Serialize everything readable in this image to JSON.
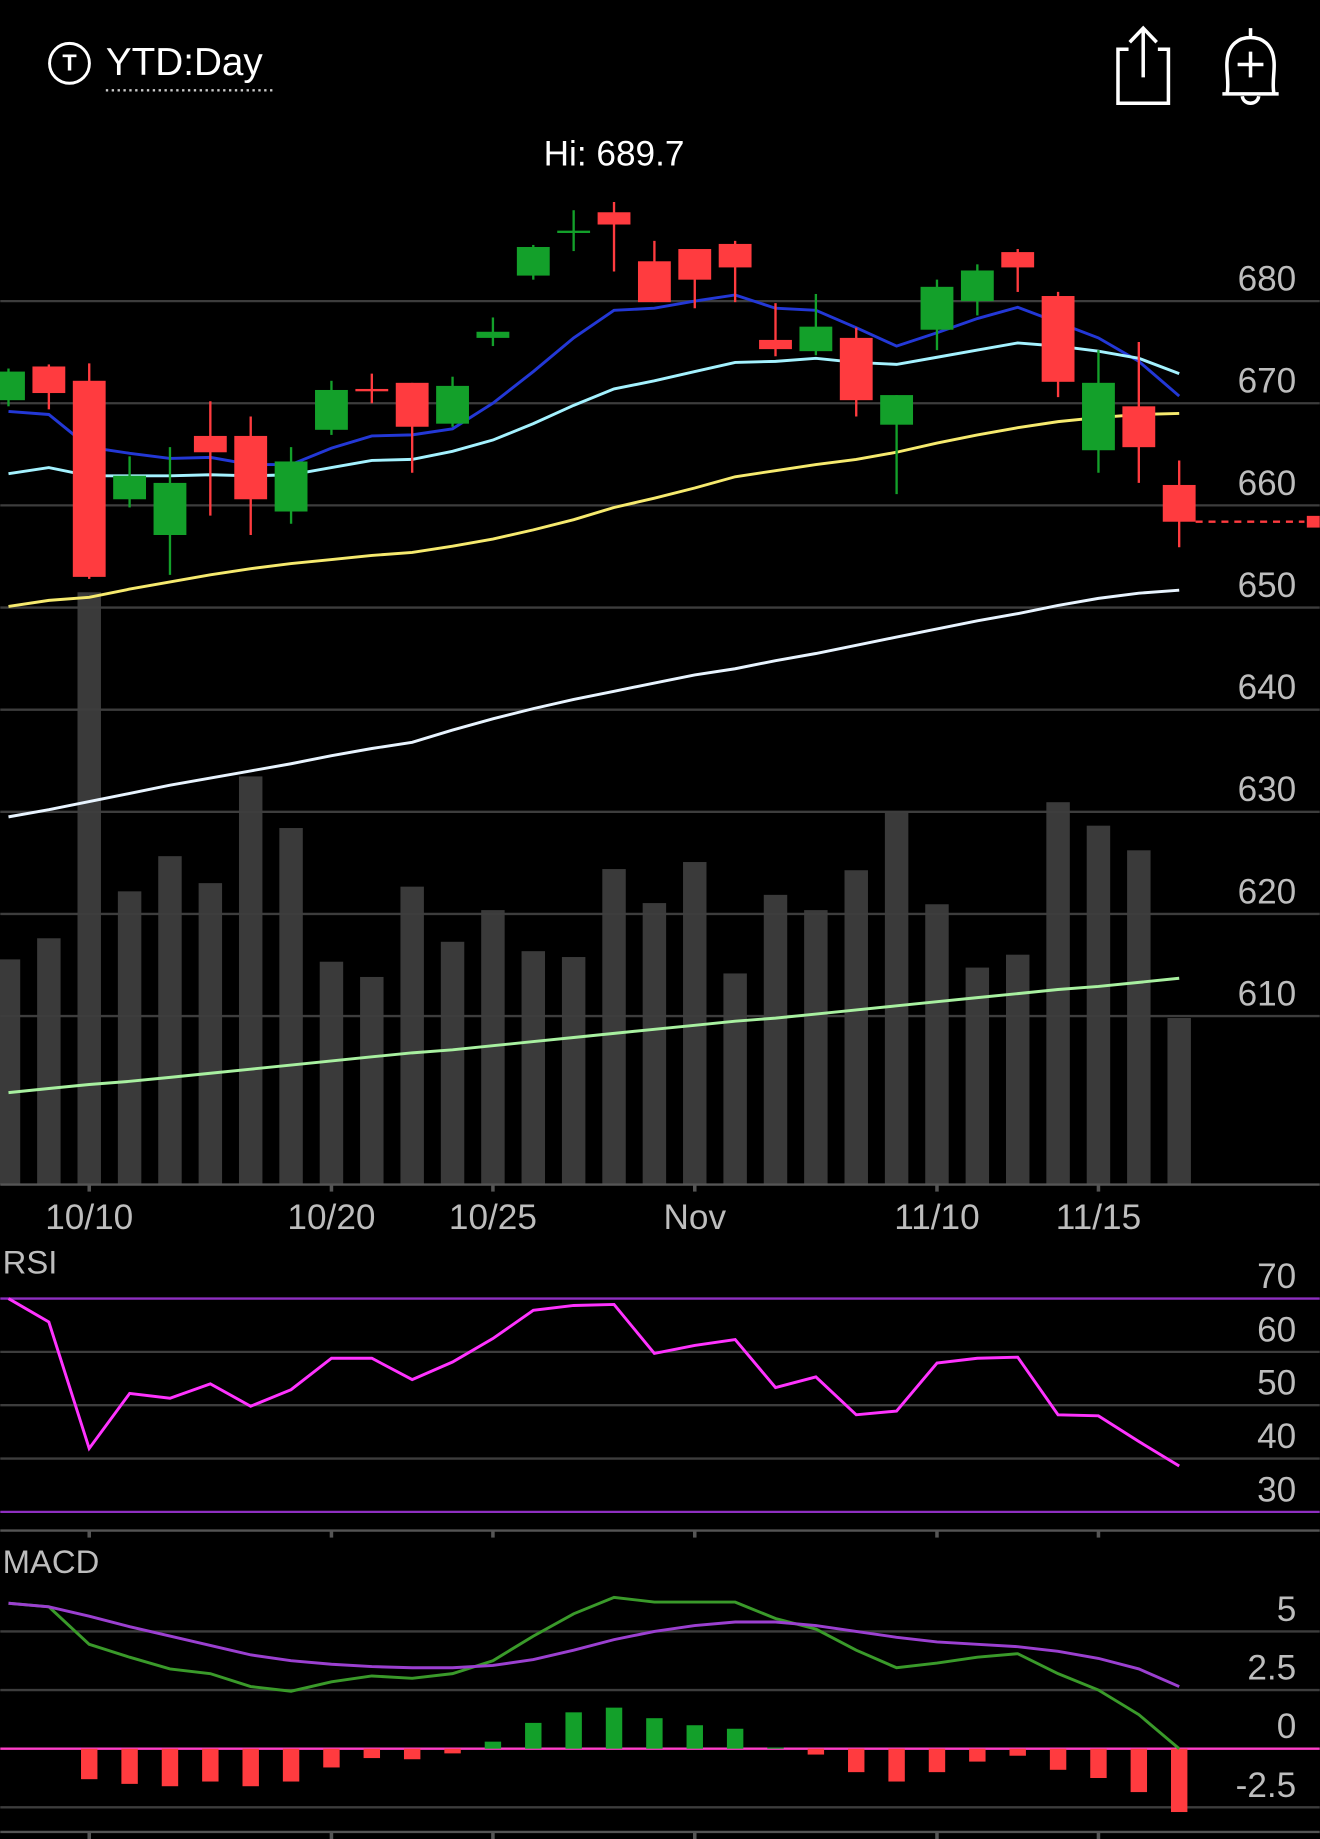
{
  "header": {
    "title": "YTD:Day",
    "icon_letter": "T"
  },
  "chart_data": [
    {
      "type": "candlestick",
      "annotation": "Hi: 689.7",
      "categories": [
        null,
        null,
        "10/10",
        null,
        null,
        null,
        null,
        null,
        "10/20",
        null,
        null,
        null,
        "10/25",
        null,
        null,
        null,
        null,
        "Nov",
        null,
        null,
        null,
        null,
        null,
        "11/10",
        null,
        null,
        null,
        "11/15",
        null,
        null
      ],
      "open": [
        670.3,
        673.6,
        672.2,
        660.6,
        657.1,
        666.8,
        666.8,
        659.4,
        667.4,
        671.4,
        672.0,
        668.0,
        676.4,
        682.5,
        686.8,
        688.7,
        683.9,
        685.1,
        685.6,
        676.2,
        675.1,
        676.4,
        667.9,
        677.2,
        680.0,
        684.8,
        680.5,
        665.4,
        669.7,
        662.0
      ],
      "high": [
        673.4,
        673.8,
        673.9,
        664.8,
        665.7,
        670.2,
        668.7,
        665.7,
        672.2,
        672.9,
        672.0,
        672.6,
        678.4,
        685.5,
        688.9,
        689.7,
        685.9,
        685.1,
        685.9,
        679.8,
        680.7,
        677.4,
        670.8,
        682.1,
        683.6,
        685.1,
        680.9,
        675.2,
        676.0,
        664.4
      ],
      "low": [
        669.7,
        669.4,
        652.8,
        659.8,
        653.2,
        659.0,
        657.1,
        658.2,
        666.9,
        670.0,
        663.2,
        667.7,
        675.6,
        682.1,
        684.9,
        682.9,
        679.9,
        679.3,
        679.9,
        674.6,
        674.7,
        668.7,
        661.1,
        675.2,
        678.6,
        680.9,
        670.6,
        663.2,
        662.2,
        655.9
      ],
      "close": [
        673.1,
        671.0,
        653.0,
        662.9,
        662.2,
        665.2,
        660.6,
        664.3,
        671.3,
        671.2,
        667.7,
        671.7,
        677.0,
        685.3,
        686.9,
        687.5,
        679.9,
        682.1,
        683.3,
        675.3,
        677.5,
        670.3,
        670.8,
        681.4,
        683.0,
        683.3,
        672.1,
        672.0,
        665.7,
        658.4
      ],
      "volume": [
        192,
        210,
        505,
        250,
        280,
        257,
        348,
        304,
        190,
        177,
        254,
        207,
        234,
        199,
        194,
        269,
        240,
        275,
        180,
        247,
        234,
        268,
        317,
        239,
        185,
        196,
        326,
        306,
        285,
        142
      ],
      "overlays": [
        {
          "color": "#2338d6",
          "values": [
            669.2,
            668.9,
            665.7,
            665.1,
            664.6,
            664.7,
            664.0,
            664.0,
            665.6,
            666.8,
            666.9,
            667.5,
            670.0,
            673.1,
            676.4,
            679.1,
            679.3,
            680.0,
            680.6,
            679.3,
            679.1,
            677.4,
            675.6,
            676.9,
            678.3,
            679.4,
            677.9,
            676.4,
            674.1,
            670.7
          ]
        },
        {
          "color": "#a4f2ff",
          "values": [
            663.1,
            663.7,
            662.9,
            662.9,
            662.9,
            663.0,
            662.9,
            663.0,
            663.7,
            664.4,
            664.5,
            665.3,
            666.4,
            668.0,
            669.8,
            671.4,
            672.2,
            673.1,
            674.0,
            674.1,
            674.4,
            674.0,
            673.8,
            674.5,
            675.2,
            675.9,
            675.6,
            675.1,
            674.4,
            672.9
          ]
        },
        {
          "color": "#f6ea6e",
          "values": [
            650.1,
            650.7,
            651.0,
            651.8,
            652.5,
            653.2,
            653.8,
            654.3,
            654.7,
            655.1,
            655.4,
            656.0,
            656.7,
            657.6,
            658.6,
            659.8,
            660.7,
            661.7,
            662.8,
            663.4,
            664.0,
            664.5,
            665.2,
            666.1,
            666.9,
            667.6,
            668.2,
            668.6,
            668.9,
            669.0
          ]
        },
        {
          "color": "#e8f4ff",
          "values": [
            629.5,
            630.2,
            631.0,
            631.8,
            632.6,
            633.3,
            634.0,
            634.7,
            635.5,
            636.2,
            636.8,
            638.0,
            639.1,
            640.1,
            641.0,
            641.8,
            642.6,
            643.4,
            644.0,
            644.8,
            645.5,
            646.3,
            647.1,
            647.9,
            648.7,
            649.4,
            650.2,
            650.9,
            651.4,
            651.7
          ]
        },
        {
          "color": "#a8f0a0",
          "values": [
            602.5,
            602.9,
            603.3,
            603.6,
            604.0,
            604.4,
            604.8,
            605.2,
            605.6,
            606.0,
            606.4,
            606.7,
            607.1,
            607.5,
            607.9,
            608.3,
            608.7,
            609.1,
            609.5,
            609.8,
            610.2,
            610.6,
            611.0,
            611.4,
            611.8,
            612.2,
            612.6,
            612.9,
            613.3,
            613.7
          ]
        }
      ],
      "up_color": "#13a02a",
      "down_color": "#ff3b3f",
      "volume_color": "#3a3a3a",
      "ylim": [
        593.5,
        698
      ],
      "yticks": [
        610,
        620,
        630,
        640,
        650,
        660,
        670,
        680
      ],
      "grid": true
    },
    {
      "type": "line",
      "title": "RSI",
      "series": [
        {
          "color": "#ff33ff",
          "values": [
            70.0,
            65.6,
            41.9,
            52.2,
            51.3,
            54.0,
            49.8,
            52.9,
            58.8,
            58.8,
            54.8,
            58.1,
            62.5,
            67.8,
            68.7,
            68.9,
            59.7,
            61.2,
            62.3,
            53.3,
            55.3,
            48.2,
            48.9,
            57.9,
            58.8,
            59.0,
            48.2,
            48.0,
            43.2,
            38.6
          ]
        }
      ],
      "levels": [
        30,
        70
      ],
      "level_color": "#8e2fc0",
      "ylim": [
        26.5,
        74
      ],
      "yticks": [
        30,
        40,
        50,
        60,
        70
      ],
      "grid": true
    },
    {
      "type": "macd",
      "title": "MACD",
      "series": [
        {
          "color": "#3a9a2a",
          "values": [
            6.2,
            6.05,
            4.45,
            3.9,
            3.4,
            3.2,
            2.65,
            2.45,
            2.85,
            3.1,
            3.0,
            3.2,
            3.75,
            4.8,
            5.75,
            6.45,
            6.25,
            6.25,
            6.25,
            5.55,
            5.1,
            4.2,
            3.45,
            3.65,
            3.9,
            4.05,
            3.2,
            2.5,
            1.45,
            0.0
          ]
        },
        {
          "color": "#9b40d0",
          "values": [
            6.2,
            6.05,
            5.65,
            5.2,
            4.8,
            4.4,
            4.0,
            3.75,
            3.6,
            3.5,
            3.45,
            3.45,
            3.55,
            3.8,
            4.2,
            4.65,
            5.0,
            5.25,
            5.4,
            5.4,
            5.25,
            5.0,
            4.75,
            4.55,
            4.45,
            4.35,
            4.15,
            3.85,
            3.4,
            2.65
          ]
        }
      ],
      "histogram": [
        0.0,
        0.0,
        -1.3,
        -1.5,
        -1.6,
        -1.4,
        -1.6,
        -1.4,
        -0.8,
        -0.4,
        -0.45,
        -0.2,
        0.3,
        1.1,
        1.55,
        1.75,
        1.3,
        1.0,
        0.85,
        0.05,
        -0.25,
        -1.0,
        -1.4,
        -1.0,
        -0.55,
        -0.3,
        -0.9,
        -1.25,
        -1.85,
        -2.7
      ],
      "zero_color": "#ff3fc8",
      "ylim": [
        -3.55,
        7.3
      ],
      "yticks": [
        -2.5,
        0,
        2.5,
        5
      ],
      "grid": true
    }
  ]
}
